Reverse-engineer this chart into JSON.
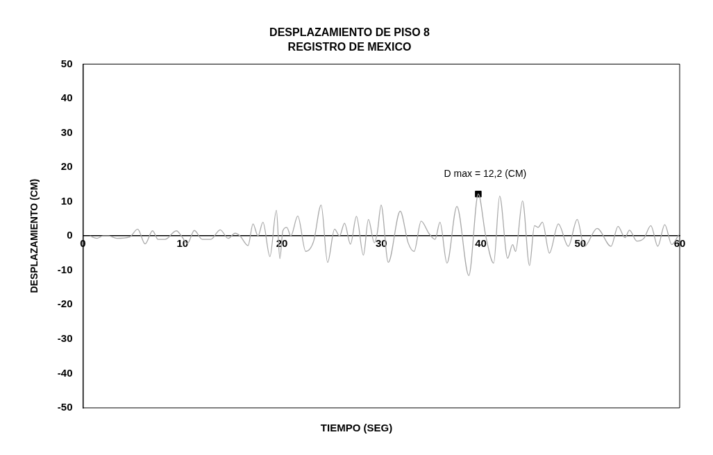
{
  "chart_data": {
    "type": "line",
    "title": "DESPLAZAMIENTO DE PISO 8",
    "subtitle": "REGISTRO DE MEXICO",
    "xlabel": "TIEMPO (SEG)",
    "ylabel": "DESPLAZAMIENTO (CM)",
    "xlim": [
      0,
      60
    ],
    "xticks": [
      0,
      10,
      20,
      30,
      40,
      50,
      60
    ],
    "ylim": [
      -50,
      50
    ],
    "yticks": [
      -50,
      -40,
      -30,
      -20,
      -10,
      0,
      10,
      20,
      30,
      40,
      50
    ],
    "grid": false,
    "legend": false,
    "annotations": [
      {
        "text": "D max = 12,2 (CM)",
        "x": 39.75,
        "y": 12.2
      }
    ],
    "series": [
      {
        "color": "#a8a8a8",
        "marker": "none",
        "x": [
          0.7,
          1.4,
          2.0,
          2.6,
          3.4,
          4.7,
          5.5,
          6.25,
          7.0,
          7.55,
          8.25,
          9.4,
          9.9,
          10.5,
          11.2,
          12.0,
          12.85,
          13.8,
          14.6,
          15.3,
          15.8,
          16.6,
          17.1,
          17.6,
          18.1,
          18.8,
          19.45,
          19.8,
          20.1,
          20.5,
          20.9,
          21.6,
          22.4,
          23.2,
          23.95,
          24.6,
          25.3,
          25.8,
          26.3,
          26.9,
          27.5,
          28.2,
          28.7,
          29.3,
          29.6,
          29.98,
          30.7,
          31.9,
          32.7,
          33.3,
          34.0,
          34.8,
          35.4,
          35.9,
          36.6,
          37.6,
          38.8,
          39.75,
          40.5,
          41.3,
          41.9,
          42.7,
          43.2,
          43.5,
          44.2,
          44.9,
          45.4,
          45.76,
          46.2,
          46.9,
          47.8,
          48.8,
          49.7,
          50.4,
          51.7,
          53.1,
          53.8,
          54.5,
          54.95,
          55.7,
          56.4,
          57.1,
          57.8,
          58.5,
          59.2,
          59.9
        ],
        "values": [
          0,
          -0.7,
          0,
          0,
          -0.7,
          -0.3,
          2,
          -2.3,
          1.5,
          -1,
          -1,
          1.5,
          0,
          -2.2,
          1.6,
          -1,
          -1,
          1.8,
          -0.7,
          0.8,
          0,
          -2.8,
          3.5,
          0,
          4,
          -6,
          7.5,
          -6.6,
          1.5,
          2.5,
          0,
          5.8,
          -4.5,
          -1.5,
          9,
          -7.7,
          2,
          0,
          3.7,
          -2.4,
          5.7,
          -5.6,
          4.8,
          -2,
          1,
          9,
          -7.7,
          7.2,
          -2,
          -4.5,
          4.3,
          0.7,
          -1,
          4,
          -7.9,
          8.6,
          -11.5,
          12.2,
          0,
          -7.9,
          11.6,
          -6.5,
          -2.5,
          -4.5,
          10.2,
          -8.6,
          3,
          2.5,
          4,
          -5,
          3.5,
          -3,
          4.8,
          -3.1,
          2.2,
          -3,
          2.8,
          -0.5,
          1.7,
          -1.5,
          -0.7,
          3,
          -3,
          3.3,
          -2.5,
          0.3
        ]
      },
      {
        "type": "scatter",
        "color": "#000000",
        "marker": "square",
        "x": [
          39.75
        ],
        "values": [
          12.2
        ]
      }
    ]
  }
}
